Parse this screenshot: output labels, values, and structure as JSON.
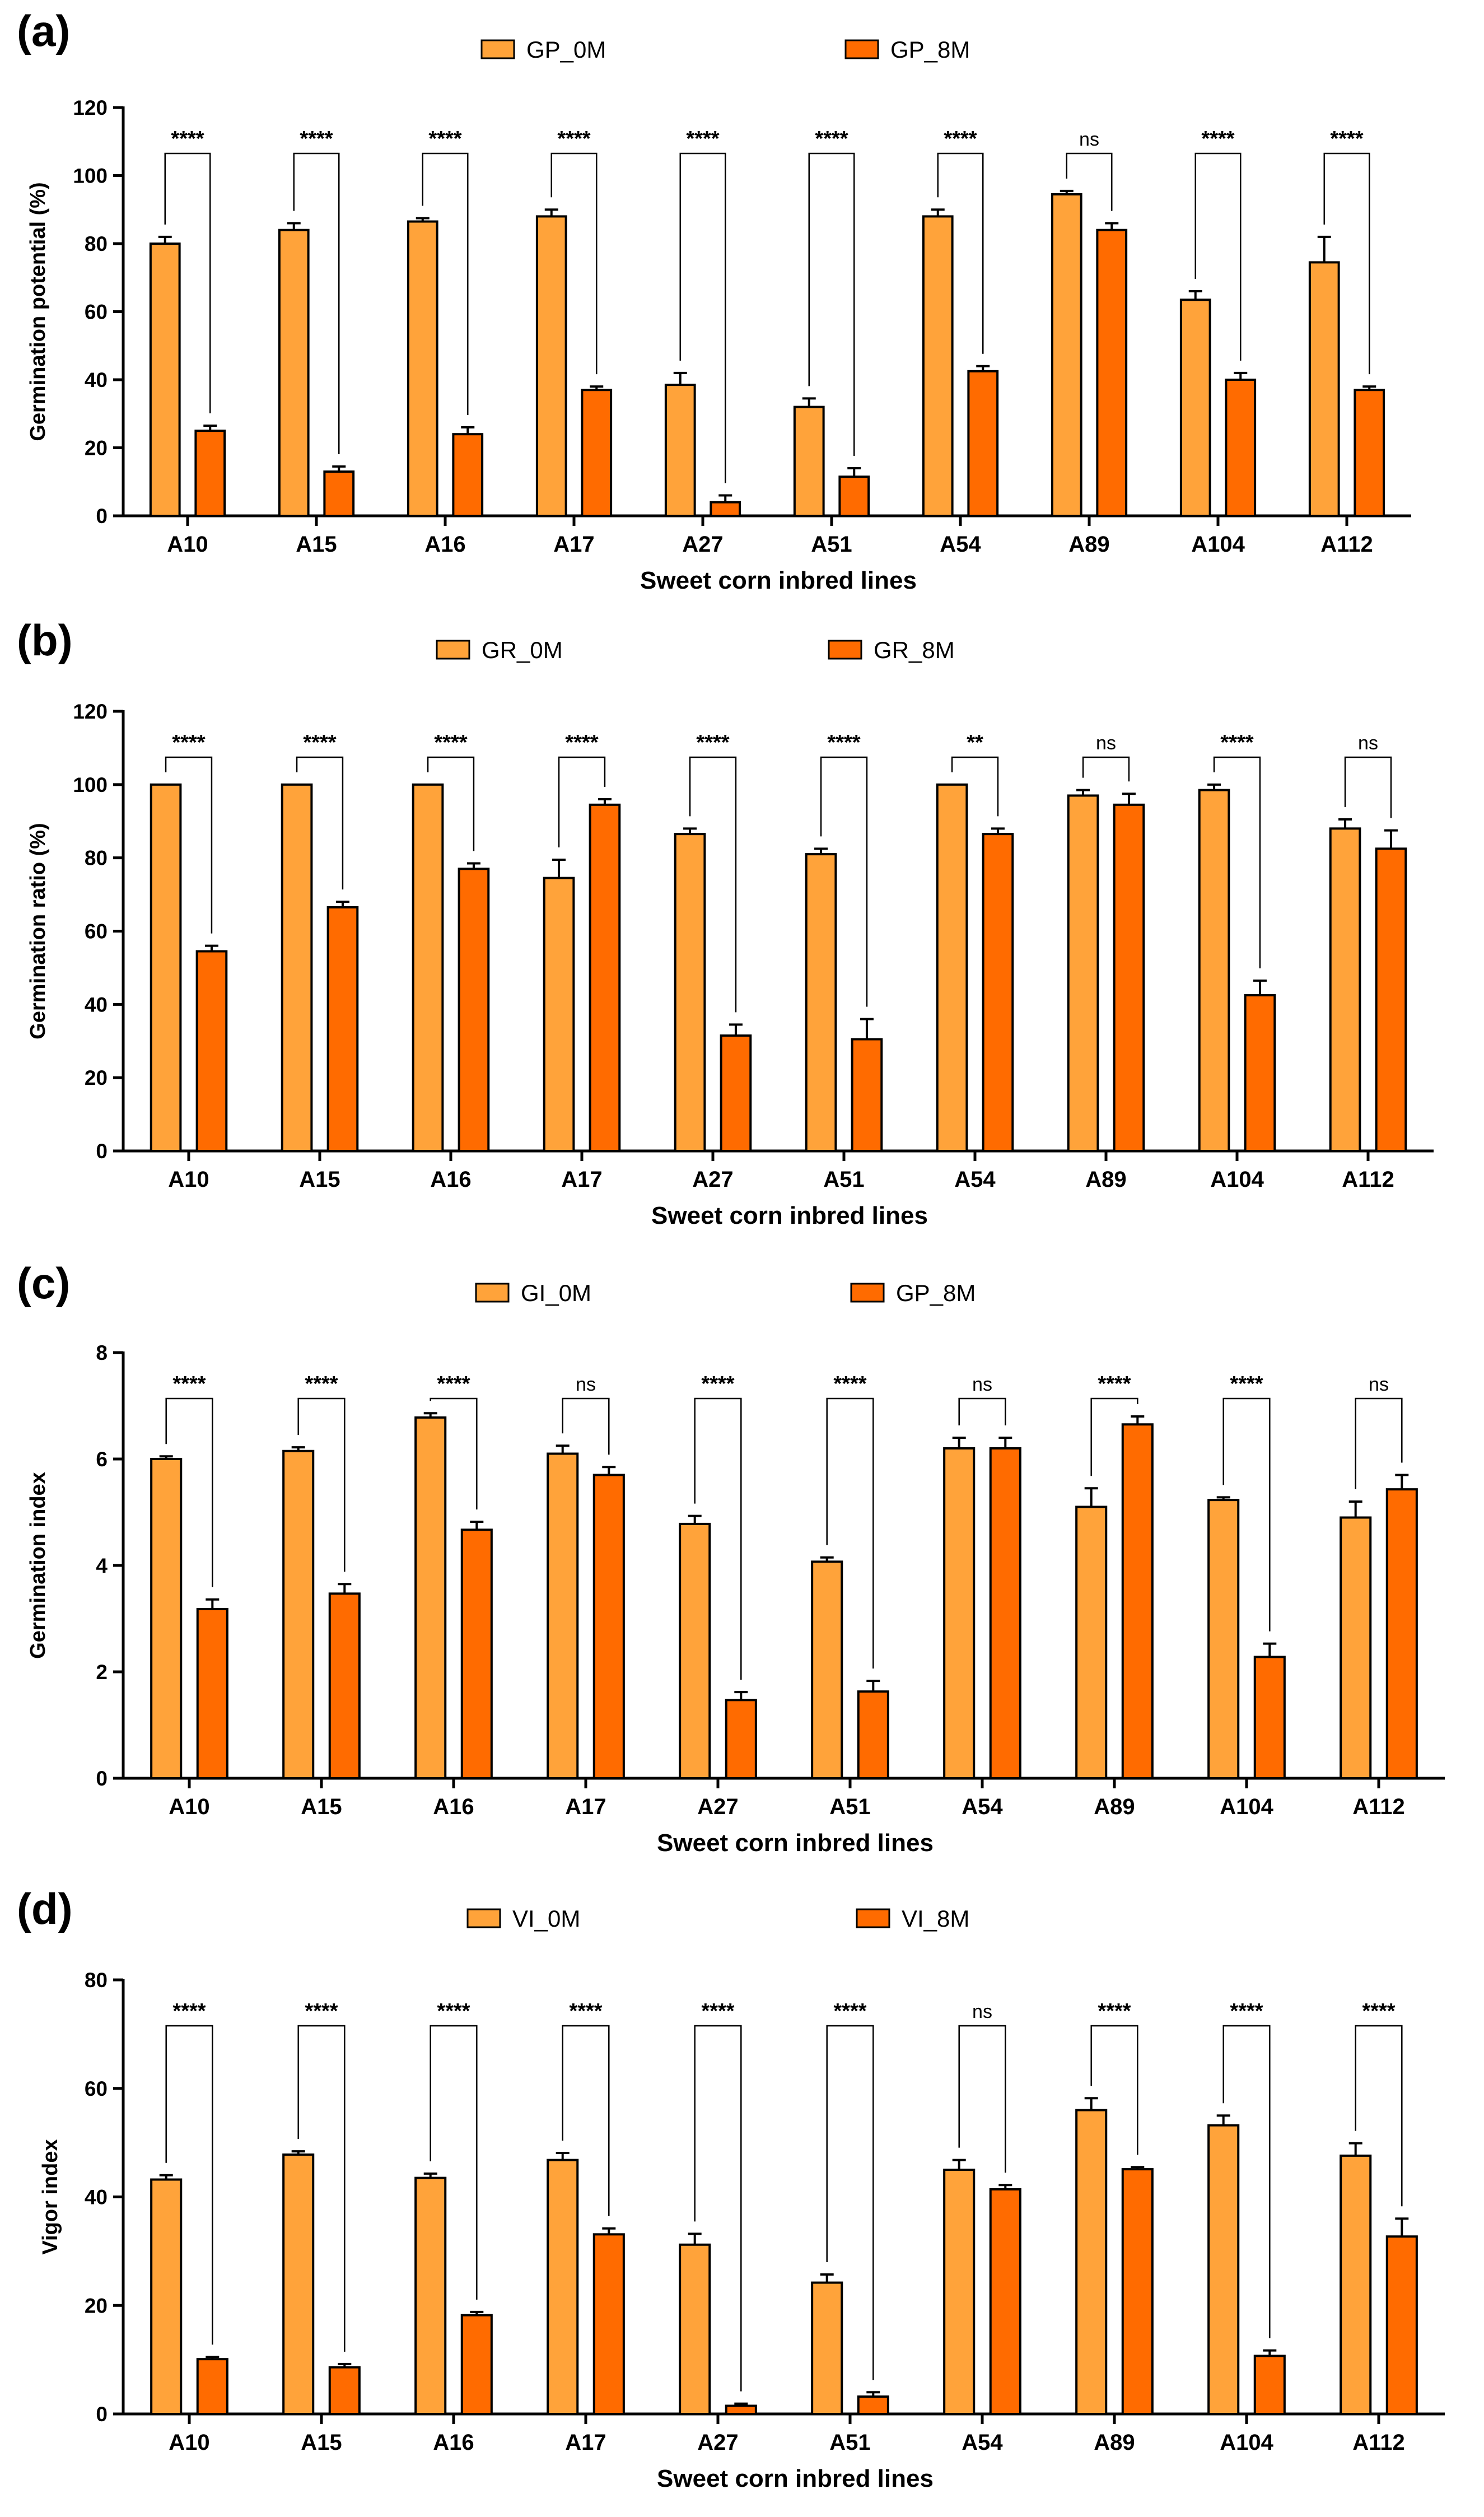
{
  "chart_data": [
    {
      "type": "bar",
      "panel": "(a)",
      "categories": [
        "A10",
        "A15",
        "A16",
        "A17",
        "A27",
        "A51",
        "A54",
        "A89",
        "A104",
        "A112"
      ],
      "series": [
        {
          "name": "GP_0M",
          "color": "#FFA33A",
          "values": [
            80,
            84,
            86.5,
            88,
            38.5,
            32,
            88,
            94.5,
            63.5,
            74.5
          ],
          "errors": [
            2,
            2,
            1,
            2,
            3.5,
            2.5,
            2,
            1,
            2.5,
            7.5
          ]
        },
        {
          "name": "GP_8M",
          "color": "#FF6B00",
          "values": [
            25,
            13,
            24,
            37,
            4,
            11.5,
            42.5,
            84,
            40,
            37
          ],
          "errors": [
            1.5,
            1.5,
            2,
            1,
            2,
            2.5,
            1.5,
            2,
            2,
            1
          ]
        }
      ],
      "significance": [
        "****",
        "****",
        "****",
        "****",
        "****",
        "****",
        "****",
        "ns",
        "****",
        "****"
      ],
      "xlabel": "Sweet corn inbred lines",
      "ylabel": "Germination potential (%)",
      "ylim": [
        0,
        120
      ],
      "yticks": [
        0,
        20,
        40,
        60,
        80,
        100,
        120
      ],
      "legend": "top-center"
    },
    {
      "type": "bar",
      "panel": "(b)",
      "categories": [
        "A10",
        "A15",
        "A16",
        "A17",
        "A27",
        "A51",
        "A54",
        "A89",
        "A104",
        "A112"
      ],
      "series": [
        {
          "name": "GR_0M",
          "color": "#FFA33A",
          "values": [
            100,
            100,
            100,
            74.5,
            86.5,
            81,
            100,
            97,
            98.5,
            88
          ],
          "errors": [
            0,
            0,
            0,
            5,
            1.5,
            1.5,
            0,
            1.5,
            1.5,
            2.5
          ]
        },
        {
          "name": "GR_8M",
          "color": "#FF6B00",
          "values": [
            54.5,
            66.5,
            77,
            94.5,
            31.5,
            30.5,
            86.5,
            94.5,
            42.5,
            82.5
          ],
          "errors": [
            1.5,
            1.5,
            1.5,
            1.5,
            3,
            5.5,
            1.5,
            3,
            4,
            5
          ]
        }
      ],
      "significance": [
        "****",
        "****",
        "****",
        "****",
        "****",
        "****",
        "**",
        "ns",
        "****",
        "ns"
      ],
      "xlabel": "Sweet corn inbred lines",
      "ylabel": "Germination ratio (%)",
      "ylim": [
        0,
        120
      ],
      "yticks": [
        0,
        20,
        40,
        60,
        80,
        100,
        120
      ],
      "legend": "top-center"
    },
    {
      "type": "bar",
      "panel": "(c)",
      "categories": [
        "A10",
        "A15",
        "A16",
        "A17",
        "A27",
        "A51",
        "A54",
        "A89",
        "A104",
        "A112"
      ],
      "series": [
        {
          "name": "GI_0M",
          "color": "#FFA33A",
          "values": [
            6.0,
            6.15,
            6.78,
            6.1,
            4.78,
            4.07,
            6.2,
            5.1,
            5.23,
            4.9
          ],
          "errors": [
            0.05,
            0.07,
            0.08,
            0.15,
            0.15,
            0.08,
            0.2,
            0.35,
            0.05,
            0.3
          ]
        },
        {
          "name": "GP_8M",
          "color": "#FF6B00",
          "values": [
            3.18,
            3.47,
            4.67,
            5.7,
            1.47,
            1.63,
            6.2,
            6.65,
            2.28,
            5.43
          ],
          "errors": [
            0.18,
            0.18,
            0.15,
            0.15,
            0.15,
            0.2,
            0.2,
            0.15,
            0.25,
            0.27
          ]
        }
      ],
      "significance": [
        "****",
        "****",
        "****",
        "ns",
        "****",
        "****",
        "ns",
        "****",
        "****",
        "ns"
      ],
      "xlabel": "Sweet corn inbred lines",
      "ylabel": "Germination index",
      "ylim": [
        0,
        8
      ],
      "yticks": [
        0,
        2,
        4,
        6,
        8
      ],
      "legend": "top-center"
    },
    {
      "type": "bar",
      "panel": "(d)",
      "categories": [
        "A10",
        "A15",
        "A16",
        "A17",
        "A27",
        "A51",
        "A54",
        "A89",
        "A104",
        "A112"
      ],
      "series": [
        {
          "name": "VI_0M",
          "color": "#FFA33A",
          "values": [
            43.2,
            47.8,
            43.5,
            46.8,
            31.2,
            24.2,
            45,
            56,
            53.2,
            47.6
          ],
          "errors": [
            0.8,
            0.6,
            0.8,
            1.3,
            2,
            1.5,
            1.8,
            2.2,
            1.8,
            2.3
          ]
        },
        {
          "name": "VI_8M",
          "color": "#FF6B00",
          "values": [
            10.1,
            8.6,
            18.2,
            33.1,
            1.5,
            3.2,
            41.4,
            45.1,
            10.7,
            32.7
          ],
          "errors": [
            0.4,
            0.6,
            0.6,
            1.1,
            0.4,
            0.8,
            0.8,
            0.4,
            1.0,
            3.3
          ]
        }
      ],
      "significance": [
        "****",
        "****",
        "****",
        "****",
        "****",
        "****",
        "ns",
        "****",
        "****",
        "****"
      ],
      "xlabel": "Sweet corn inbred lines",
      "ylabel": "Vigor index",
      "ylim": [
        0,
        80
      ],
      "yticks": [
        0,
        20,
        40,
        60,
        80
      ],
      "legend": "top-center"
    }
  ]
}
